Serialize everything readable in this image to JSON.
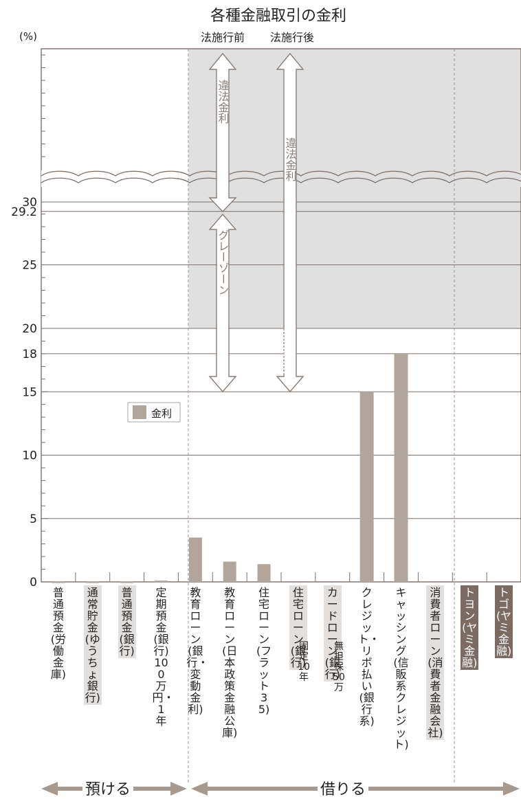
{
  "colors": {
    "bar": "#b2a59c",
    "shade": "#e0e0e0",
    "grid": "#7a6f69",
    "arrow_stroke": "#8a7d76",
    "label_shade": "#e2dfdc",
    "label_dark": "#7b6b62"
  },
  "chart_data": {
    "type": "bar",
    "title": "各種金融取引の金利",
    "ylabel": "(%)",
    "ylim": [
      0,
      30
    ],
    "yticks": [
      "0",
      "5",
      "10",
      "15",
      "18",
      "20",
      "25",
      "29.2",
      "30"
    ],
    "legend": {
      "label": "金利",
      "placement": "center-left"
    },
    "categories": [
      "普通預金(労働金庫)",
      "通常貯金(ゆうちょ銀行)",
      "普通預金(銀行)",
      "定期預金(銀行)100万円・1年",
      "教育ローン(銀行・変動金利)",
      "教育ローン(日本政策金融公庫)",
      "住宅ローン(フラット35)",
      "住宅ローン(銀行)",
      "カードローン(銀行)",
      "クレジット・リボ払い(銀行系)",
      "キャッシング(信販系クレジット)",
      "消費者ローン(消費者金融会社)",
      "トヨン(ヤミ金融)",
      "トゴ (ヤミ金融)"
    ],
    "series": [
      {
        "name": "金利",
        "values": [
          0.02,
          0.02,
          0.02,
          0.1,
          3.5,
          1.6,
          1.4,
          0,
          0,
          15,
          18,
          0,
          0,
          0
        ]
      }
    ],
    "annotations": {
      "before_law": "法施行前",
      "after_law": "法施行後",
      "illegal_rate": "違法金利",
      "gray_zone": "グレーゾーン",
      "label_fixed": "固定10年",
      "label_unsecured": "無担保50万",
      "deposit": "預ける",
      "borrow": "借りる"
    }
  }
}
